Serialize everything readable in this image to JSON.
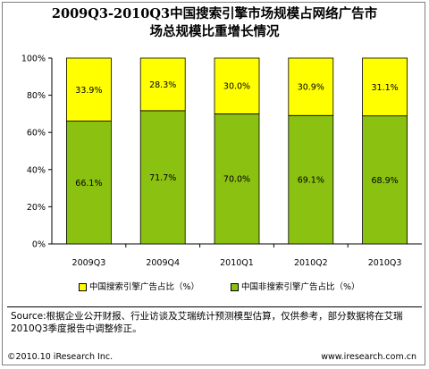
{
  "title_lines": [
    "2009Q3-2010Q3中国搜索引擎市场规模占网络广告市",
    "场总规模比重增长情况"
  ],
  "chart_data": {
    "type": "bar",
    "stacked": true,
    "categories": [
      "2009Q3",
      "2009Q4",
      "2010Q1",
      "2010Q2",
      "2010Q3"
    ],
    "series": [
      {
        "name": "中国非搜索引擎广告占比（%）",
        "values": [
          66.1,
          71.7,
          70.0,
          69.1,
          68.9
        ],
        "labels": [
          "66.1%",
          "71.7%",
          "70.0%",
          "69.1%",
          "68.9%"
        ],
        "color": "#8bc110"
      },
      {
        "name": "中国搜索引擎广告占比（%）",
        "values": [
          33.9,
          28.3,
          30.0,
          30.9,
          31.1
        ],
        "labels": [
          "33.9%",
          "28.3%",
          "30.0%",
          "30.9%",
          "31.1%"
        ],
        "color": "#ffff00"
      }
    ],
    "ylim": [
      0,
      100
    ],
    "yticks": [
      0,
      20,
      40,
      60,
      80,
      100
    ],
    "ytick_labels": [
      "0%",
      "20%",
      "40%",
      "60%",
      "80%",
      "100%"
    ],
    "grid": false,
    "plot_background": "#ffffff",
    "legend_position": "bottom"
  },
  "legend": [
    {
      "label": "中国搜索引擎广告占比（%）",
      "color": "#ffff00"
    },
    {
      "label": "中国非搜索引擎广告占比（%）",
      "color": "#8bc110"
    }
  ],
  "source_text": "Source:根据企业公开财报、行业访谈及艾瑞统计预测模型估算，仅供参考，部分数据将在艾瑞2010Q3季度报告中调整修正。",
  "footer_left": "©2010.10 iResearch Inc.",
  "footer_right": "www.iresearch.com.cn"
}
